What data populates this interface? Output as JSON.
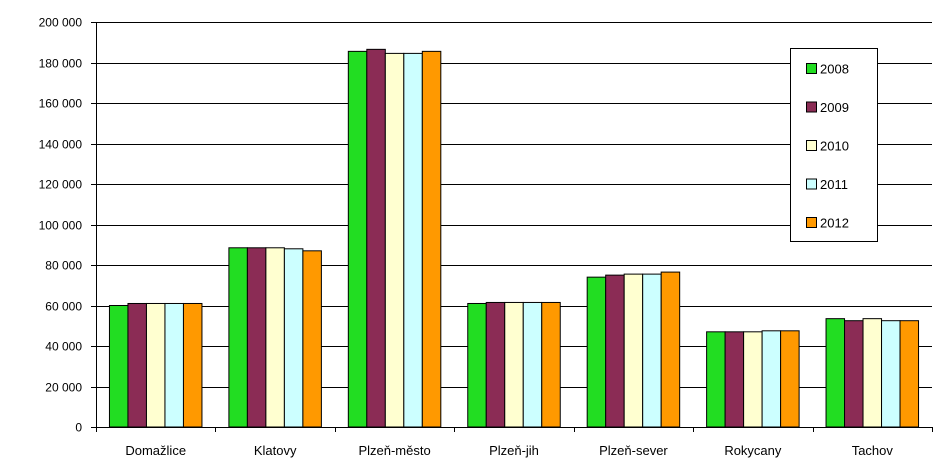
{
  "chart_data": {
    "type": "bar",
    "title": "",
    "xlabel": "",
    "ylabel": "",
    "ylim": [
      0,
      200000
    ],
    "yticks": [
      0,
      20000,
      40000,
      60000,
      80000,
      100000,
      120000,
      140000,
      160000,
      180000,
      200000
    ],
    "ytick_labels": [
      "0",
      "20 000",
      "40 000",
      "60 000",
      "80 000",
      "100 000",
      "120 000",
      "140 000",
      "160 000",
      "180 000",
      "200 000"
    ],
    "grid": true,
    "legend_position": "right",
    "categories": [
      "Domažlice",
      "Klatovy",
      "Plzeň-město",
      "Plzeň-jih",
      "Plzeň-sever",
      "Rokycany",
      "Tachov"
    ],
    "series": [
      {
        "name": "2008",
        "color": "#22dd22",
        "values": [
          60000,
          88500,
          185500,
          61000,
          74000,
          47000,
          53500
        ]
      },
      {
        "name": "2009",
        "color": "#8b2c55",
        "values": [
          61000,
          88500,
          186500,
          61500,
          75000,
          47000,
          52500
        ]
      },
      {
        "name": "2010",
        "color": "#ffffd0",
        "values": [
          61000,
          88500,
          184500,
          61500,
          75500,
          47000,
          53500
        ]
      },
      {
        "name": "2011",
        "color": "#ccffff",
        "values": [
          61000,
          88000,
          184500,
          61500,
          75500,
          47500,
          52500
        ]
      },
      {
        "name": "2012",
        "color": "#ff9900",
        "values": [
          61000,
          87000,
          185500,
          61500,
          76500,
          47500,
          52500
        ]
      }
    ]
  }
}
